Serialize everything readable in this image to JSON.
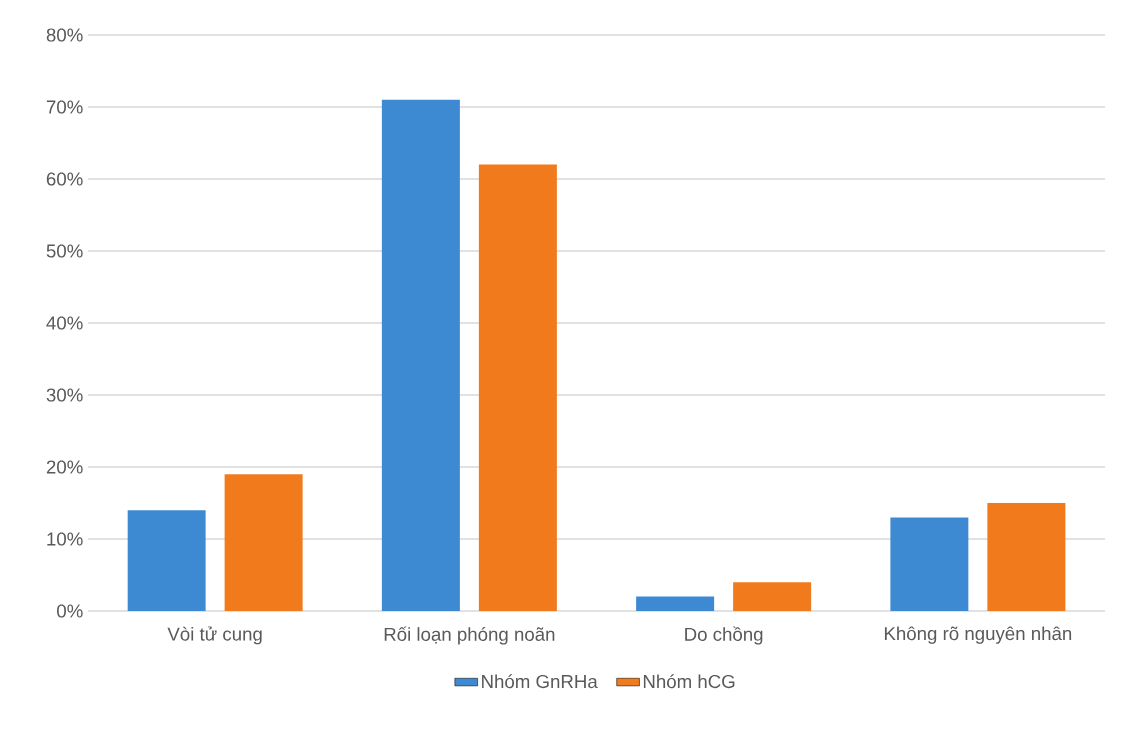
{
  "chart_data": {
    "type": "bar",
    "categories": [
      "Vòi tử cung",
      "Rối loạn phóng noãn",
      "Do chồng",
      "Không rõ nguyên nhân"
    ],
    "series": [
      {
        "name": "Nhóm GnRHa",
        "color": "#3d8ad3",
        "values": [
          14,
          71,
          2,
          13
        ]
      },
      {
        "name": "Nhóm hCG",
        "color": "#f07a1c",
        "values": [
          19,
          62,
          4,
          15
        ]
      }
    ],
    "ylim": [
      0,
      80
    ],
    "yticks": [
      {
        "value": 0,
        "label": "0%"
      },
      {
        "value": 10,
        "label": "10%"
      },
      {
        "value": 20,
        "label": "20%"
      },
      {
        "value": 30,
        "label": "30%"
      },
      {
        "value": 40,
        "label": "40%"
      },
      {
        "value": 50,
        "label": "50%"
      },
      {
        "value": 60,
        "label": "60%"
      },
      {
        "value": 70,
        "label": "70%"
      },
      {
        "value": 80,
        "label": "80%"
      }
    ],
    "grid": "y",
    "legend": "bottom"
  }
}
